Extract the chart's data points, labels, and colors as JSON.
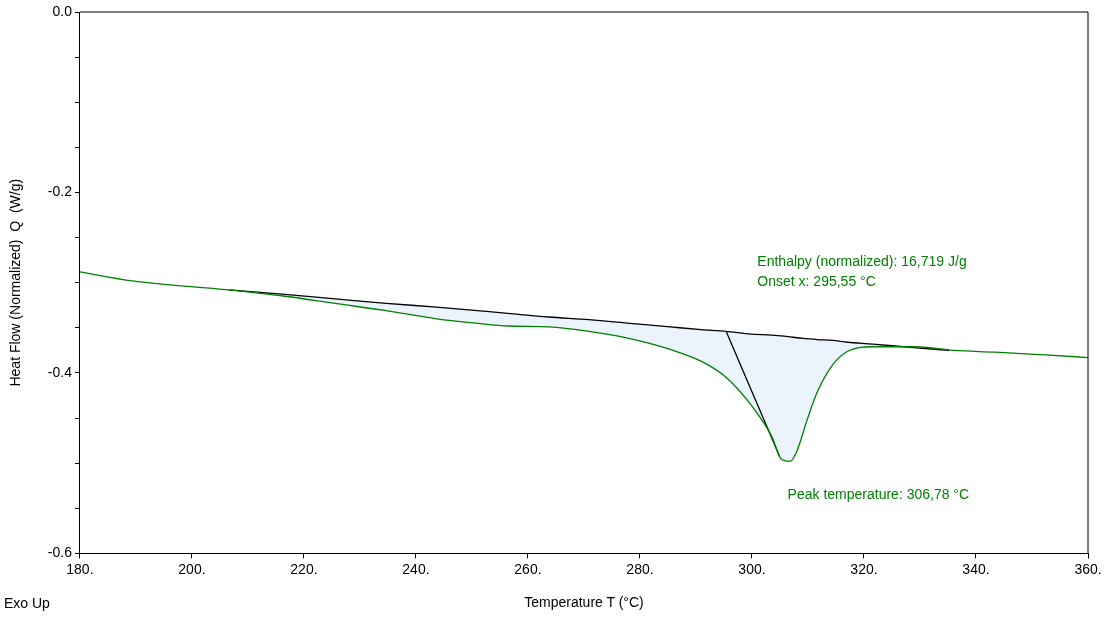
{
  "chart_data": {
    "type": "line",
    "xlabel": "Temperature T (°C)",
    "ylabel": "Heat Flow (Normalized)  Q  (W/g)",
    "xlim": [
      180,
      360
    ],
    "ylim": [
      -0.6,
      0.0
    ],
    "xticks": [
      {
        "value": 180,
        "label": "180."
      },
      {
        "value": 200,
        "label": "200."
      },
      {
        "value": 220,
        "label": "220."
      },
      {
        "value": 240,
        "label": "240."
      },
      {
        "value": 260,
        "label": "260."
      },
      {
        "value": 280,
        "label": "280."
      },
      {
        "value": 300,
        "label": "300."
      },
      {
        "value": 320,
        "label": "320."
      },
      {
        "value": 340,
        "label": "340."
      },
      {
        "value": 360,
        "label": "360."
      }
    ],
    "yticks": [
      {
        "value": -0.6,
        "label": "-0.6"
      },
      {
        "value": -0.55,
        "label": null
      },
      {
        "value": -0.5,
        "label": null
      },
      {
        "value": -0.45,
        "label": null
      },
      {
        "value": -0.4,
        "label": "-0.4"
      },
      {
        "value": -0.35,
        "label": null
      },
      {
        "value": -0.3,
        "label": null
      },
      {
        "value": -0.25,
        "label": null
      },
      {
        "value": -0.2,
        "label": "-0.2"
      },
      {
        "value": -0.15,
        "label": null
      },
      {
        "value": -0.1,
        "label": null
      },
      {
        "value": -0.05,
        "label": null
      },
      {
        "value": 0.0,
        "label": "0.0"
      }
    ],
    "grid": false,
    "legend": false,
    "marker": "none",
    "line_style": "solid",
    "series": [
      {
        "color": "#008000",
        "x": [
          180,
          189.4,
          206.6,
          216.6,
          225.6,
          234.7,
          243.7,
          251,
          256.4,
          263.7,
          270.9,
          278.2,
          285.4,
          290.9,
          295.4,
          299.9,
          303.5,
          305.3,
          306.8,
          308,
          309.8,
          311.6,
          314.4,
          317.1,
          321.6,
          328.9,
          336.1,
          343.4,
          352.4,
          360
        ],
        "values": [
          -0.288,
          -0.298,
          -0.308,
          -0.315,
          -0.323,
          -0.331,
          -0.34,
          -0.345,
          -0.348,
          -0.349,
          -0.354,
          -0.362,
          -0.374,
          -0.387,
          -0.405,
          -0.436,
          -0.47,
          -0.496,
          -0.498,
          -0.487,
          -0.453,
          -0.422,
          -0.391,
          -0.376,
          -0.371,
          -0.371,
          -0.375,
          -0.377,
          -0.38,
          -0.383
        ]
      },
      {
        "color": "#000000",
        "x": [
          206.6,
          216.6,
          225.6,
          234.7,
          243.7,
          251,
          256.4,
          263.7,
          270.9,
          278.2,
          285.4,
          290.9,
          295.4,
          299.9,
          303.5,
          305.3,
          306.8,
          308,
          309.8,
          311.6,
          314.4,
          317.1,
          321.6,
          328.9,
          335.2
        ],
        "values": [
          -0.308,
          -0.313,
          -0.318,
          -0.323,
          -0.327,
          -0.331,
          -0.334,
          -0.338,
          -0.341,
          -0.345,
          -0.349,
          -0.352,
          -0.354,
          -0.357,
          -0.358,
          -0.359,
          -0.36,
          -0.361,
          -0.362,
          -0.363,
          -0.364,
          -0.366,
          -0.368,
          -0.372,
          -0.375
        ],
        "lower": [
          -0.308,
          -0.315,
          -0.323,
          -0.331,
          -0.34,
          -0.345,
          -0.348,
          -0.349,
          -0.354,
          -0.362,
          -0.374,
          -0.387,
          -0.405,
          -0.436,
          -0.47,
          -0.496,
          -0.498,
          -0.487,
          -0.453,
          -0.422,
          -0.391,
          -0.376,
          -0.371,
          -0.372,
          -0.375
        ],
        "upper": [
          -0.308,
          -0.313,
          -0.318,
          -0.323,
          -0.327,
          -0.331,
          -0.334,
          -0.338,
          -0.341,
          -0.345,
          -0.349,
          -0.352,
          -0.354,
          -0.357,
          -0.358,
          -0.359,
          -0.36,
          -0.361,
          -0.362,
          -0.363,
          -0.364,
          -0.366,
          -0.368,
          -0.372,
          -0.375
        ]
      },
      {
        "color": "#000000",
        "x": [
          295.4,
          304.9
        ],
        "values": [
          -0.354,
          -0.492
        ]
      }
    ],
    "annotations": [
      "Enthalpy (normalized): 16,719 J/g\nOnset x: 295,55 °C",
      "Peak temperature: 306,78 °C",
      "Exo Up"
    ]
  }
}
